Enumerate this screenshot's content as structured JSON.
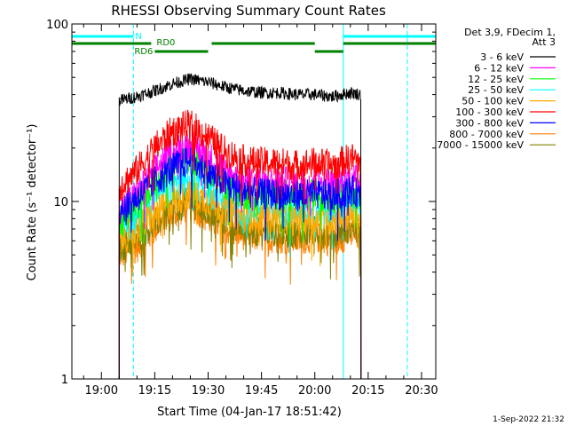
{
  "chart_data": {
    "type": "line",
    "title": "RHESSI Observing Summary Count Rates",
    "xlabel": "Start Time (04-Jan-17 18:51:42)",
    "ylabel": "Count Rate (s⁻¹ detector⁻¹)",
    "y_scale": "log",
    "ylim": [
      1,
      100
    ],
    "xlim": [
      "18:51:42",
      "20:34:00"
    ],
    "x_ticks": [
      "19:00",
      "19:15",
      "19:30",
      "19:45",
      "20:00",
      "20:15",
      "20:30"
    ],
    "y_ticks": [
      "1",
      "10",
      "100"
    ],
    "legend_header": [
      "Det 3,9, FDecim 1,",
      "Att 3"
    ],
    "legend_position": "right",
    "series": [
      {
        "name": "3 - 6 keV",
        "color": "#000000",
        "start": "19:05",
        "end": "20:13",
        "x": [
          "19:05",
          "19:10",
          "19:15",
          "19:20",
          "19:25",
          "19:30",
          "19:35",
          "19:40",
          "19:45",
          "19:50",
          "19:55",
          "20:00",
          "20:05",
          "20:10",
          "20:13"
        ],
        "values": [
          37,
          39,
          42,
          46,
          49,
          47,
          44,
          42,
          41,
          41,
          40,
          40,
          39,
          41,
          40
        ]
      },
      {
        "name": "6 - 12 keV",
        "color": "#ff00ff",
        "start": "19:05",
        "end": "20:13",
        "x": [
          "19:05",
          "19:10",
          "19:15",
          "19:20",
          "19:25",
          "19:30",
          "19:35",
          "19:40",
          "19:45",
          "19:50",
          "19:55",
          "20:00",
          "20:05",
          "20:10",
          "20:13"
        ],
        "values": [
          9,
          11,
          15,
          19,
          21,
          18,
          15,
          13,
          13,
          13,
          12.5,
          13,
          12.5,
          13.5,
          13
        ]
      },
      {
        "name": "12 - 25 keV",
        "color": "#00ff00",
        "start": "19:05",
        "end": "20:13",
        "x": [
          "19:05",
          "19:10",
          "19:15",
          "19:20",
          "19:25",
          "19:30",
          "19:35",
          "19:40",
          "19:45",
          "19:50",
          "19:55",
          "20:00",
          "20:05",
          "20:10",
          "20:13"
        ],
        "values": [
          7.5,
          9.5,
          13,
          16,
          18,
          15,
          12.5,
          11,
          11,
          11,
          10.5,
          11,
          10.5,
          11.5,
          11
        ]
      },
      {
        "name": "25 - 50 keV",
        "color": "#00ffff",
        "start": "19:05",
        "end": "20:13",
        "x": [
          "19:05",
          "19:10",
          "19:15",
          "19:20",
          "19:25",
          "19:30",
          "19:35",
          "19:40",
          "19:45",
          "19:50",
          "19:55",
          "20:00",
          "20:05",
          "20:10",
          "20:13"
        ],
        "values": [
          6.5,
          8,
          10,
          12,
          13,
          11.5,
          10,
          9,
          9,
          9,
          8.7,
          9,
          8.7,
          9.5,
          9
        ]
      },
      {
        "name": "50 - 100 keV",
        "color": "#ffaa00",
        "start": "19:05",
        "end": "20:13",
        "x": [
          "19:05",
          "19:10",
          "19:15",
          "19:20",
          "19:25",
          "19:30",
          "19:35",
          "19:40",
          "19:45",
          "19:50",
          "19:55",
          "20:00",
          "20:05",
          "20:10",
          "20:13"
        ],
        "values": [
          6,
          7,
          8.5,
          10,
          11,
          10,
          9,
          8.2,
          8,
          8,
          7.8,
          8,
          7.8,
          8.3,
          8
        ]
      },
      {
        "name": "100 - 300 keV",
        "color": "#ff0000",
        "start": "19:05",
        "end": "20:13",
        "x": [
          "19:05",
          "19:10",
          "19:15",
          "19:20",
          "19:25",
          "19:30",
          "19:35",
          "19:40",
          "19:45",
          "19:50",
          "19:55",
          "20:00",
          "20:05",
          "20:10",
          "20:13"
        ],
        "values": [
          12,
          15,
          20,
          25,
          27,
          23,
          19,
          17,
          16.5,
          16.5,
          16,
          16.5,
          16,
          17.5,
          17
        ]
      },
      {
        "name": "300 - 800 keV",
        "color": "#0000ff",
        "start": "19:05",
        "end": "20:13",
        "x": [
          "19:05",
          "19:10",
          "19:15",
          "19:20",
          "19:25",
          "19:30",
          "19:35",
          "19:40",
          "19:45",
          "19:50",
          "19:55",
          "20:00",
          "20:05",
          "20:10",
          "20:13"
        ],
        "values": [
          9,
          10.5,
          13,
          15.5,
          17,
          14.5,
          12.5,
          11.5,
          11,
          11,
          10.8,
          11,
          10.8,
          11.5,
          11
        ]
      },
      {
        "name": "800 - 7000 keV",
        "color": "#ff8000",
        "start": "19:05",
        "end": "20:13",
        "x": [
          "19:05",
          "19:10",
          "19:15",
          "19:20",
          "19:25",
          "19:30",
          "19:35",
          "19:40",
          "19:45",
          "19:50",
          "19:55",
          "20:00",
          "20:05",
          "20:10",
          "20:13"
        ],
        "values": [
          5,
          5.5,
          7,
          8.5,
          9.5,
          8,
          7,
          6.5,
          6.3,
          6.2,
          6.1,
          6.3,
          6,
          6.5,
          6.3
        ]
      },
      {
        "name": "7000 - 15000 keV",
        "color": "#808000",
        "start": "19:05",
        "end": "20:13",
        "x": [
          "19:05",
          "19:10",
          "19:15",
          "19:20",
          "19:25",
          "19:30",
          "19:35",
          "19:40",
          "19:45",
          "19:50",
          "19:55",
          "20:00",
          "20:05",
          "20:10",
          "20:13"
        ],
        "values": [
          5.5,
          6.3,
          7.5,
          9,
          10,
          8.8,
          7.8,
          7,
          6.8,
          6.8,
          6.6,
          6.8,
          6.6,
          7.2,
          6.8
        ]
      }
    ],
    "state_bars": [
      {
        "label": "N",
        "color": "#00ffff",
        "segments": [
          [
            "18:51:42",
            "19:09"
          ],
          [
            "20:08",
            "20:34"
          ]
        ]
      },
      {
        "label": "RD0",
        "color": "#008000",
        "segments": [
          [
            "18:51:42",
            "19:14"
          ],
          [
            "19:31",
            "20:00"
          ],
          [
            "20:08",
            "20:34"
          ]
        ]
      },
      {
        "label": "RD6",
        "color": "#008000",
        "segments": [
          [
            "19:15",
            "19:30"
          ],
          [
            "20:00",
            "20:08"
          ]
        ]
      }
    ],
    "vlines": [
      {
        "x": "18:51:42",
        "color": "#00ffff",
        "style": "solid"
      },
      {
        "x": "19:09",
        "color": "#00ffff",
        "style": "dashed"
      },
      {
        "x": "20:08",
        "color": "#00ffff",
        "style": "solid"
      },
      {
        "x": "20:26",
        "color": "#00ffff",
        "style": "dashed"
      }
    ]
  },
  "footer": {
    "timestamp": "1-Sep-2022 21:32"
  }
}
